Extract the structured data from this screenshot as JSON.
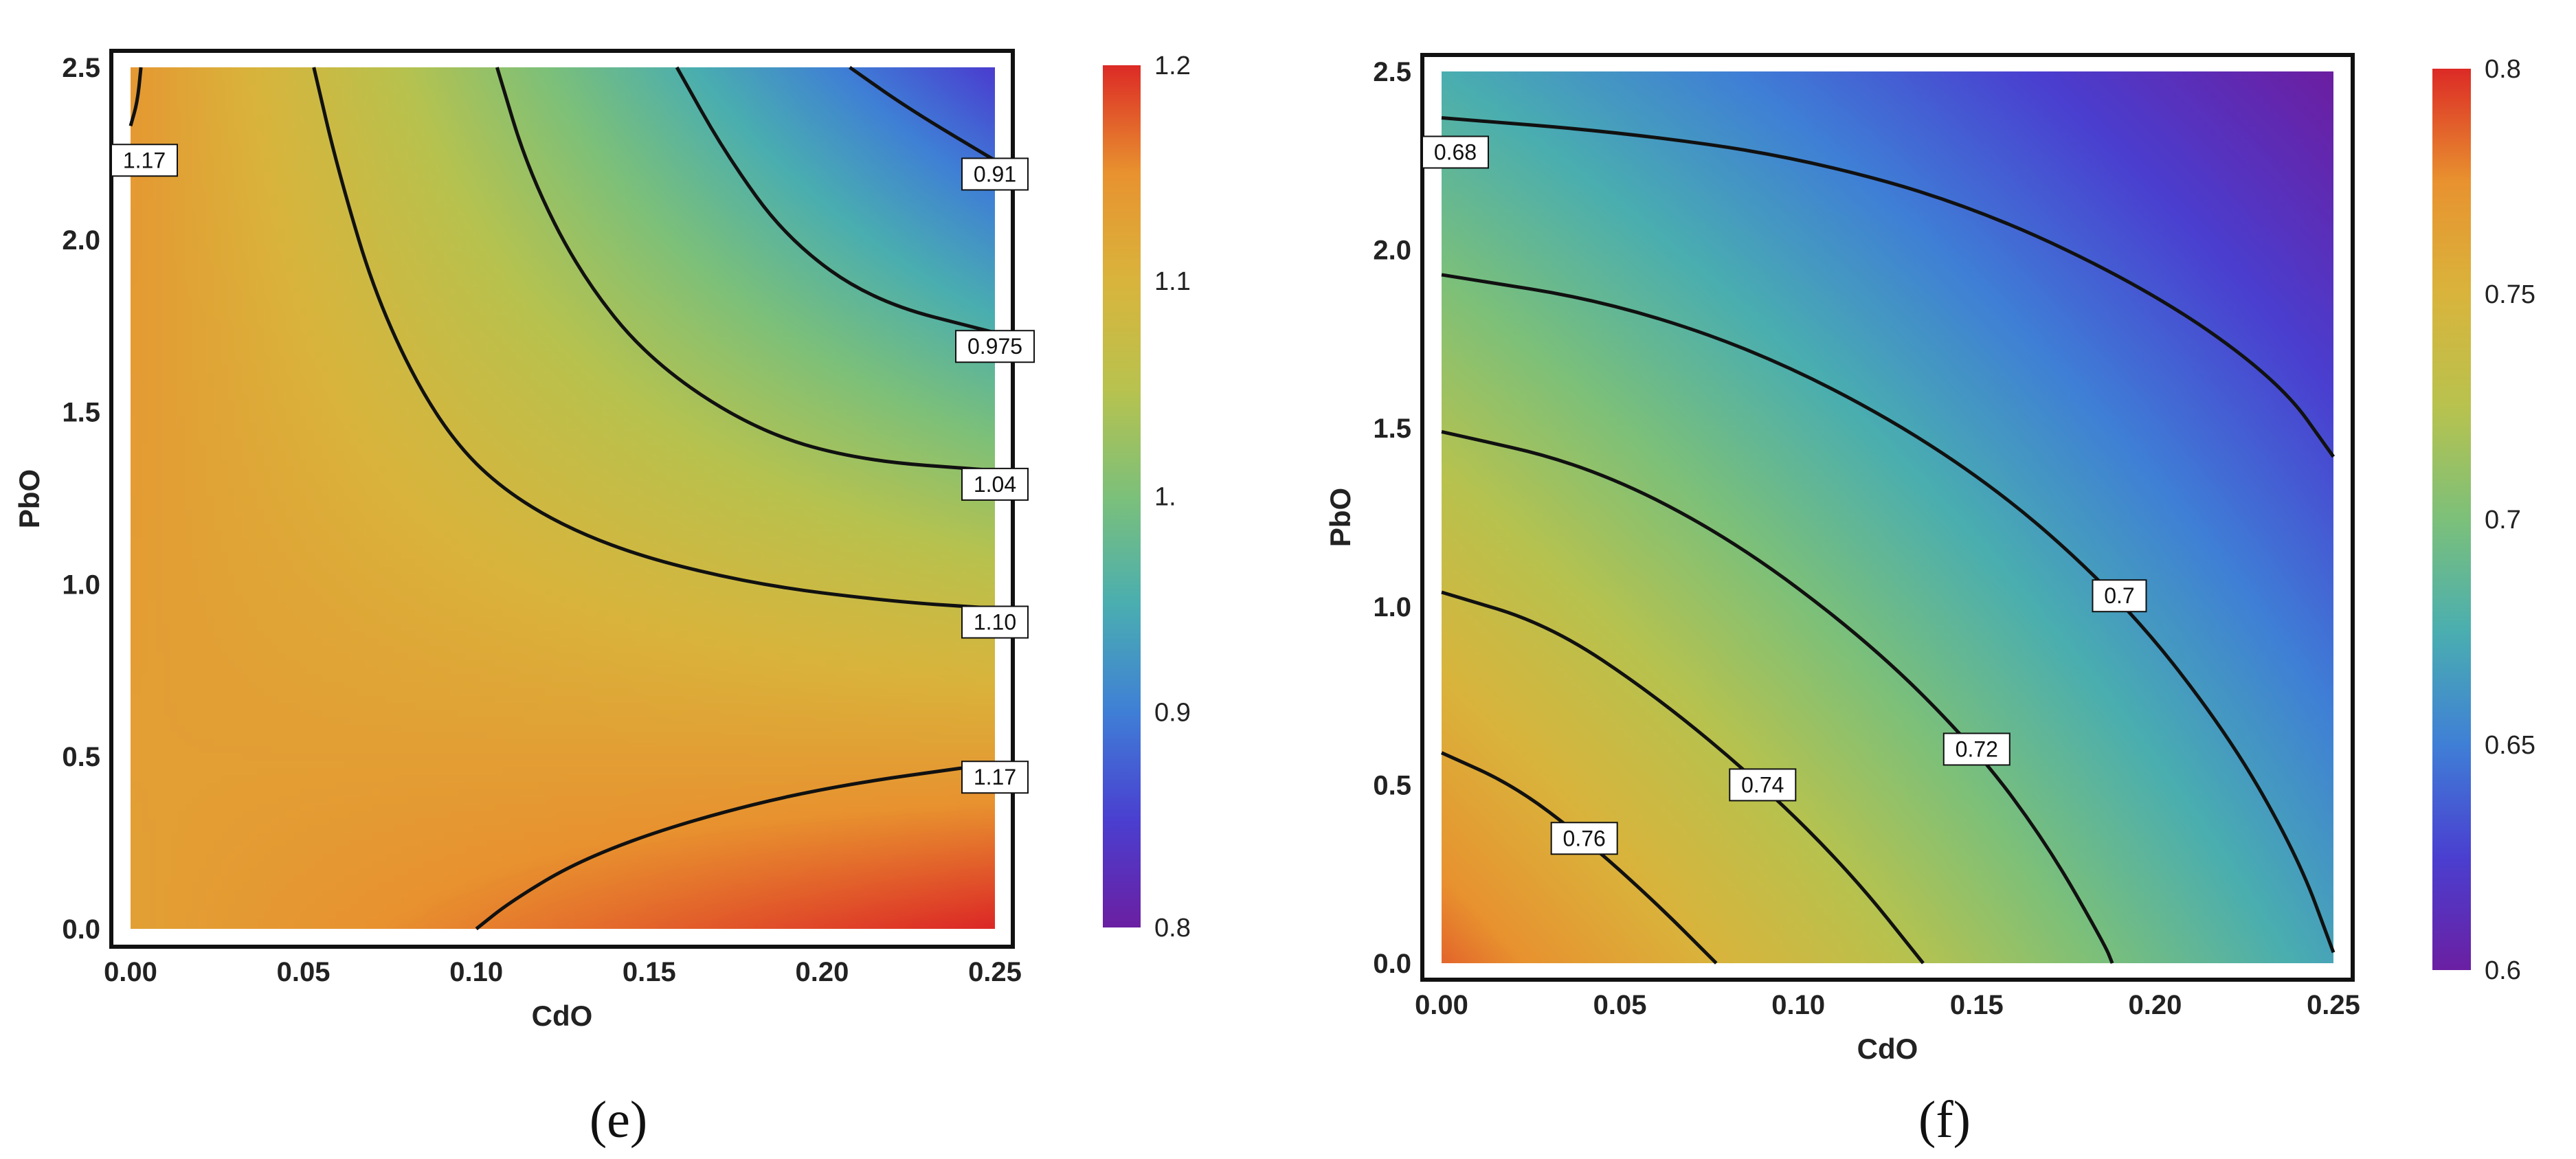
{
  "colors": {
    "colormap": [
      "#6b1fa2",
      "#4a3fd0",
      "#3f7fd6",
      "#4aaeb0",
      "#7cc07a",
      "#b8c24e",
      "#d9b43c",
      "#e8922f",
      "#dc2a26"
    ]
  },
  "chart_data": [
    {
      "type": "heatmap",
      "panel": "(e)",
      "caption": "(e)",
      "xlabel": "CdO",
      "ylabel": "PbO",
      "xlim": [
        0,
        0.25
      ],
      "ylim": [
        0,
        2.5
      ],
      "x_ticks": [
        "0.00",
        "0.05",
        "0.10",
        "0.15",
        "0.20",
        "0.25"
      ],
      "y_ticks": [
        "0.0",
        "0.5",
        "1.0",
        "1.5",
        "2.0",
        "2.5"
      ],
      "colorbar": {
        "min": 0.8,
        "max": 1.2,
        "ticks": [
          0.8,
          0.9,
          1.0,
          1.1,
          1.2
        ],
        "tick_labels": [
          "0.8",
          "0.9",
          "1.",
          "1.1",
          "1.2"
        ]
      },
      "grid": false,
      "corner_values": {
        "x0_y0": 1.13,
        "x1_y0": 1.2,
        "x0_y1": 1.14,
        "x1_y1": 0.85
      },
      "contours": [
        {
          "level": 1.17,
          "label": "1.17",
          "points": [
            [
              0.0,
              2.33
            ],
            [
              0.002,
              2.4
            ],
            [
              0.003,
              2.5
            ]
          ]
        },
        {
          "level": 0.91,
          "label": "0.91",
          "points": [
            [
              0.208,
              2.5
            ],
            [
              0.225,
              2.38
            ],
            [
              0.25,
              2.23
            ]
          ]
        },
        {
          "level": 0.975,
          "label": "0.975",
          "points": [
            [
              0.158,
              2.5
            ],
            [
              0.172,
              2.25
            ],
            [
              0.19,
              2.0
            ],
            [
              0.215,
              1.82
            ],
            [
              0.25,
              1.73
            ]
          ]
        },
        {
          "level": 1.04,
          "label": "1.04",
          "points": [
            [
              0.106,
              2.5
            ],
            [
              0.115,
              2.2
            ],
            [
              0.13,
              1.9
            ],
            [
              0.15,
              1.65
            ],
            [
              0.18,
              1.45
            ],
            [
              0.21,
              1.36
            ],
            [
              0.25,
              1.33
            ]
          ]
        },
        {
          "level": 1.1,
          "label": "1.10",
          "points": [
            [
              0.053,
              2.5
            ],
            [
              0.06,
              2.2
            ],
            [
              0.072,
              1.8
            ],
            [
              0.09,
              1.45
            ],
            [
              0.11,
              1.25
            ],
            [
              0.14,
              1.1
            ],
            [
              0.18,
              1.0
            ],
            [
              0.22,
              0.95
            ],
            [
              0.25,
              0.93
            ]
          ]
        },
        {
          "level": 1.17,
          "label": "1.17",
          "points": [
            [
              0.1,
              0.0
            ],
            [
              0.11,
              0.08
            ],
            [
              0.13,
              0.2
            ],
            [
              0.16,
              0.31
            ],
            [
              0.2,
              0.41
            ],
            [
              0.25,
              0.48
            ]
          ]
        }
      ]
    },
    {
      "type": "heatmap",
      "panel": "(f)",
      "caption": "(f)",
      "xlabel": "CdO",
      "ylabel": "PbO",
      "xlim": [
        0,
        0.25
      ],
      "ylim": [
        0,
        2.5
      ],
      "x_ticks": [
        "0.00",
        "0.05",
        "0.10",
        "0.15",
        "0.20",
        "0.25"
      ],
      "y_ticks": [
        "0.0",
        "0.5",
        "1.0",
        "1.5",
        "2.0",
        "2.5"
      ],
      "colorbar": {
        "min": 0.6,
        "max": 0.8,
        "ticks": [
          0.6,
          0.65,
          0.7,
          0.75,
          0.8
        ],
        "tick_labels": [
          "0.6",
          "0.65",
          "0.7",
          "0.75",
          "0.8"
        ]
      },
      "grid": false,
      "corner_values": {
        "x0_y0": 0.785,
        "x1_y0": 0.67,
        "x0_y1": 0.675,
        "x1_y1": 0.6
      },
      "contours": [
        {
          "level": 0.68,
          "label": "0.68",
          "points": [
            [
              0.0,
              2.37
            ],
            [
              0.05,
              2.33
            ],
            [
              0.1,
              2.26
            ],
            [
              0.15,
              2.12
            ],
            [
              0.2,
              1.88
            ],
            [
              0.235,
              1.63
            ],
            [
              0.25,
              1.42
            ]
          ]
        },
        {
          "level": 0.7,
          "label": "0.7",
          "points": [
            [
              0.0,
              1.93
            ],
            [
              0.05,
              1.85
            ],
            [
              0.1,
              1.67
            ],
            [
              0.15,
              1.38
            ],
            [
              0.19,
              1.03
            ],
            [
              0.22,
              0.65
            ],
            [
              0.24,
              0.3
            ],
            [
              0.25,
              0.03
            ]
          ]
        },
        {
          "level": 0.72,
          "label": "0.72",
          "points": [
            [
              0.0,
              1.49
            ],
            [
              0.04,
              1.4
            ],
            [
              0.08,
              1.2
            ],
            [
              0.12,
              0.9
            ],
            [
              0.15,
              0.6
            ],
            [
              0.17,
              0.33
            ],
            [
              0.186,
              0.05
            ],
            [
              0.188,
              0.0
            ]
          ]
        },
        {
          "level": 0.74,
          "label": "0.74",
          "points": [
            [
              0.0,
              1.04
            ],
            [
              0.03,
              0.95
            ],
            [
              0.06,
              0.75
            ],
            [
              0.09,
              0.5
            ],
            [
              0.115,
              0.25
            ],
            [
              0.135,
              0.0
            ]
          ]
        },
        {
          "level": 0.76,
          "label": "0.76",
          "points": [
            [
              0.0,
              0.59
            ],
            [
              0.02,
              0.5
            ],
            [
              0.04,
              0.35
            ],
            [
              0.06,
              0.17
            ],
            [
              0.077,
              0.0
            ]
          ]
        }
      ]
    }
  ]
}
